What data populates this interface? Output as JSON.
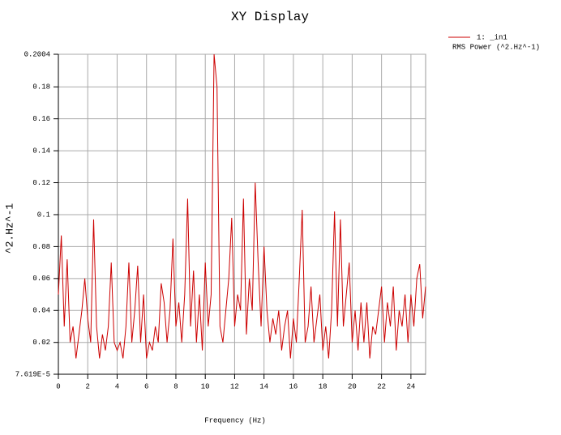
{
  "chart_data": {
    "type": "line",
    "title": "XY Display",
    "x_label": "Frequency (Hz)",
    "y_label": "^2.Hz^-1",
    "legend_subtitle": "RMS Power (^2.Hz^-1)",
    "xlim": [
      0,
      25
    ],
    "xticks": [
      0,
      2,
      4,
      6,
      8,
      10,
      12,
      14,
      16,
      18,
      20,
      22,
      24
    ],
    "ylim": [
      7.619e-05,
      0.2004
    ],
    "yticks": [
      {
        "value": 7.619e-05,
        "label": "7.619E-5"
      },
      0.02,
      0.04,
      0.06,
      0.08,
      0.1,
      0.12,
      0.14,
      0.16,
      0.18,
      0.2004
    ],
    "grid": true,
    "x": [
      0,
      0.2,
      0.4,
      0.6,
      0.8,
      1,
      1.2,
      1.4,
      1.6,
      1.8,
      2,
      2.2,
      2.4,
      2.6,
      2.8,
      3,
      3.2,
      3.4,
      3.6,
      3.8,
      4,
      4.2,
      4.4,
      4.6,
      4.8,
      5,
      5.2,
      5.4,
      5.6,
      5.8,
      6,
      6.2,
      6.4,
      6.6,
      6.8,
      7,
      7.2,
      7.4,
      7.6,
      7.8,
      8,
      8.2,
      8.4,
      8.6,
      8.8,
      9,
      9.2,
      9.4,
      9.6,
      9.8,
      10,
      10.2,
      10.4,
      10.6,
      10.8,
      11,
      11.2,
      11.4,
      11.6,
      11.8,
      12,
      12.2,
      12.4,
      12.6,
      12.8,
      13,
      13.2,
      13.4,
      13.6,
      13.8,
      14,
      14.2,
      14.4,
      14.6,
      14.8,
      15,
      15.2,
      15.4,
      15.6,
      15.8,
      16,
      16.2,
      16.4,
      16.6,
      16.8,
      17,
      17.2,
      17.4,
      17.6,
      17.8,
      18,
      18.2,
      18.4,
      18.6,
      18.8,
      19,
      19.2,
      19.4,
      19.6,
      19.8,
      20,
      20.2,
      20.4,
      20.6,
      20.8,
      21,
      21.2,
      21.4,
      21.6,
      21.8,
      22,
      22.2,
      22.4,
      22.6,
      22.8,
      23,
      23.2,
      23.4,
      23.6,
      23.8,
      24,
      24.2,
      24.4,
      24.6,
      24.8,
      25
    ],
    "series": [
      {
        "name": "1: _in1",
        "color": "#cc0000",
        "values": [
          0.05,
          0.087,
          0.03,
          0.072,
          0.02,
          0.03,
          0.01,
          0.025,
          0.04,
          0.06,
          0.035,
          0.02,
          0.097,
          0.03,
          0.01,
          0.025,
          0.015,
          0.03,
          0.07,
          0.02,
          0.015,
          0.02,
          0.01,
          0.03,
          0.07,
          0.02,
          0.04,
          0.068,
          0.02,
          0.05,
          0.01,
          0.02,
          0.015,
          0.03,
          0.02,
          0.057,
          0.045,
          0.02,
          0.04,
          0.085,
          0.03,
          0.045,
          0.02,
          0.05,
          0.11,
          0.03,
          0.065,
          0.02,
          0.05,
          0.015,
          0.07,
          0.03,
          0.05,
          0.2004,
          0.18,
          0.03,
          0.02,
          0.04,
          0.06,
          0.098,
          0.03,
          0.05,
          0.04,
          0.11,
          0.025,
          0.06,
          0.04,
          0.12,
          0.07,
          0.03,
          0.08,
          0.04,
          0.02,
          0.035,
          0.025,
          0.04,
          0.015,
          0.03,
          0.04,
          0.01,
          0.035,
          0.02,
          0.06,
          0.103,
          0.02,
          0.03,
          0.055,
          0.02,
          0.035,
          0.05,
          0.015,
          0.03,
          0.01,
          0.04,
          0.102,
          0.03,
          0.097,
          0.03,
          0.05,
          0.07,
          0.02,
          0.04,
          0.015,
          0.045,
          0.02,
          0.045,
          0.01,
          0.03,
          0.025,
          0.04,
          0.055,
          0.02,
          0.045,
          0.03,
          0.055,
          0.015,
          0.04,
          0.03,
          0.05,
          0.02,
          0.05,
          0.03,
          0.06,
          0.069,
          0.035,
          0.055
        ]
      }
    ]
  }
}
